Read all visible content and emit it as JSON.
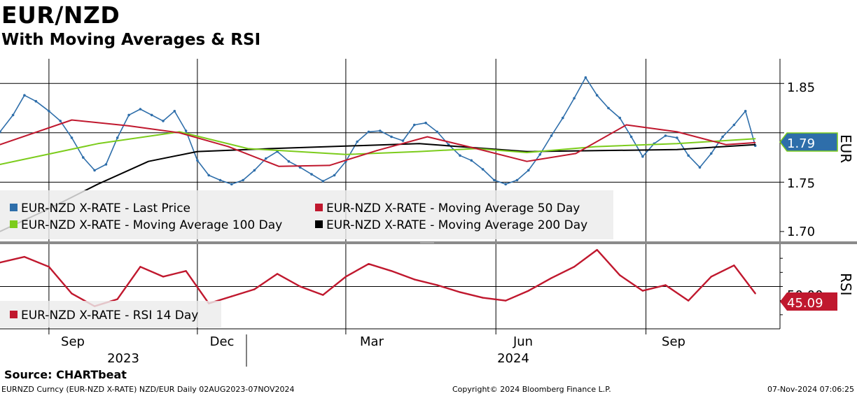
{
  "header": {
    "title": "EUR/NZD",
    "subtitle": "With Moving Averages & RSI"
  },
  "footer": {
    "source": "Source:  CHARTbeat",
    "left": "EURNZD Curncy (EUR-NZD X-RATE) NZD/EUR  Daily 02AUG2023-07NOV2024",
    "middle": "Copyright© 2024 Bloomberg Finance L.P.",
    "right": "07-Nov-2024 07:06:25"
  },
  "colors": {
    "price": "#2e6eaa",
    "ma50": "#c0182e",
    "ma100": "#7ccc1c",
    "ma200": "#000000",
    "rsi": "#c0182e",
    "grid": "#000000"
  },
  "chart_data": [
    {
      "type": "line",
      "panel": "price",
      "title": "EUR/NZD",
      "x_range": [
        "2023-08-02",
        "2024-11-07"
      ],
      "xlabel": "",
      "ylabel": "EUR",
      "ylim": [
        1.69,
        1.875
      ],
      "y_ticks": [
        "1.85",
        "1.75",
        "1.70"
      ],
      "x_ticks": [
        "Sep",
        "Dec",
        "Mar",
        "Jun",
        "Sep"
      ],
      "year_labels": [
        "2023",
        "2024"
      ],
      "last_value_label": "1.79",
      "legend": [
        {
          "label": "EUR-NZD X-RATE - Last Price",
          "color": "#2e6eaa"
        },
        {
          "label": "EUR-NZD X-RATE - Moving Average 50 Day",
          "color": "#c0182e"
        },
        {
          "label": "EUR-NZD X-RATE - Moving Average 100 Day",
          "color": "#7ccc1c"
        },
        {
          "label": "EUR-NZD X-RATE - Moving Average 200 Day",
          "color": "#000000"
        }
      ],
      "series": [
        {
          "name": "Last Price",
          "x": [
            "2023-08-02",
            "2023-08-10",
            "2023-08-17",
            "2023-08-24",
            "2023-09-01",
            "2023-09-08",
            "2023-09-15",
            "2023-09-22",
            "2023-09-29",
            "2023-10-06",
            "2023-10-13",
            "2023-10-20",
            "2023-10-27",
            "2023-11-03",
            "2023-11-10",
            "2023-11-17",
            "2023-11-24",
            "2023-12-01",
            "2023-12-08",
            "2023-12-15",
            "2023-12-22",
            "2023-12-29",
            "2024-01-05",
            "2024-01-12",
            "2024-01-19",
            "2024-01-26",
            "2024-02-02",
            "2024-02-09",
            "2024-02-16",
            "2024-02-23",
            "2024-03-01",
            "2024-03-08",
            "2024-03-15",
            "2024-03-22",
            "2024-03-29",
            "2024-04-05",
            "2024-04-12",
            "2024-04-19",
            "2024-04-26",
            "2024-05-03",
            "2024-05-10",
            "2024-05-17",
            "2024-05-24",
            "2024-05-31",
            "2024-06-07",
            "2024-06-14",
            "2024-06-21",
            "2024-06-28",
            "2024-07-05",
            "2024-07-12",
            "2024-07-19",
            "2024-07-26",
            "2024-08-02",
            "2024-08-09",
            "2024-08-16",
            "2024-08-23",
            "2024-08-30",
            "2024-09-06",
            "2024-09-13",
            "2024-09-20",
            "2024-09-27",
            "2024-10-04",
            "2024-10-11",
            "2024-10-18",
            "2024-10-25",
            "2024-11-01",
            "2024-11-07"
          ],
          "values": [
            1.801,
            1.818,
            1.838,
            1.832,
            1.822,
            1.812,
            1.795,
            1.775,
            1.762,
            1.768,
            1.795,
            1.818,
            1.824,
            1.818,
            1.812,
            1.822,
            1.802,
            1.772,
            1.757,
            1.752,
            1.748,
            1.752,
            1.762,
            1.774,
            1.781,
            1.771,
            1.765,
            1.758,
            1.751,
            1.757,
            1.771,
            1.791,
            1.801,
            1.802,
            1.796,
            1.792,
            1.808,
            1.81,
            1.801,
            1.788,
            1.777,
            1.772,
            1.763,
            1.752,
            1.748,
            1.752,
            1.762,
            1.778,
            1.797,
            1.815,
            1.835,
            1.856,
            1.838,
            1.825,
            1.815,
            1.796,
            1.776,
            1.789,
            1.797,
            1.795,
            1.777,
            1.765,
            1.779,
            1.796,
            1.808,
            1.822,
            1.787
          ]
        },
        {
          "name": "Moving Average 50 Day",
          "x": [
            "2023-08-02",
            "2023-09-15",
            "2023-10-20",
            "2023-11-20",
            "2023-12-20",
            "2024-01-20",
            "2024-02-20",
            "2024-03-20",
            "2024-04-20",
            "2024-05-20",
            "2024-06-20",
            "2024-07-20",
            "2024-08-20",
            "2024-09-20",
            "2024-10-20",
            "2024-11-07"
          ],
          "values": [
            1.788,
            1.813,
            1.807,
            1.8,
            1.786,
            1.766,
            1.767,
            1.782,
            1.796,
            1.784,
            1.771,
            1.779,
            1.808,
            1.801,
            1.788,
            1.79
          ]
        },
        {
          "name": "Moving Average 100 Day",
          "x": [
            "2023-08-02",
            "2023-10-01",
            "2023-11-20",
            "2024-01-01",
            "2024-03-01",
            "2024-04-15",
            "2024-05-20",
            "2024-06-20",
            "2024-08-01",
            "2024-09-20",
            "2024-11-07"
          ],
          "values": [
            1.768,
            1.789,
            1.801,
            1.784,
            1.778,
            1.781,
            1.784,
            1.78,
            1.786,
            1.789,
            1.794
          ]
        },
        {
          "name": "Moving Average 200 Day",
          "x": [
            "2023-08-02",
            "2023-09-01",
            "2023-10-01",
            "2023-11-01",
            "2023-12-01",
            "2024-01-15",
            "2024-04-15",
            "2024-06-20",
            "2024-09-20",
            "2024-11-07"
          ],
          "values": [
            1.7,
            1.723,
            1.748,
            1.771,
            1.781,
            1.784,
            1.789,
            1.781,
            1.783,
            1.788
          ]
        }
      ]
    },
    {
      "type": "line",
      "panel": "rsi",
      "ylabel": "RSI",
      "ylim": [
        20,
        80
      ],
      "y_ticks": [
        "50.00"
      ],
      "last_value_label": "45.09",
      "legend": [
        {
          "label": "EUR-NZD X-RATE - RSI 14 Day",
          "color": "#c0182e"
        }
      ],
      "series": [
        {
          "name": "RSI 14 Day",
          "x": [
            "2023-08-02",
            "2023-08-17",
            "2023-09-01",
            "2023-09-15",
            "2023-09-29",
            "2023-10-13",
            "2023-10-27",
            "2023-11-10",
            "2023-11-24",
            "2023-12-08",
            "2023-12-22",
            "2024-01-05",
            "2024-01-19",
            "2024-02-02",
            "2024-02-16",
            "2024-03-01",
            "2024-03-15",
            "2024-03-29",
            "2024-04-12",
            "2024-04-26",
            "2024-05-10",
            "2024-05-24",
            "2024-06-07",
            "2024-06-21",
            "2024-07-05",
            "2024-07-19",
            "2024-08-02",
            "2024-08-16",
            "2024-08-30",
            "2024-09-13",
            "2024-09-27",
            "2024-10-11",
            "2024-10-25",
            "2024-11-07"
          ],
          "values": [
            67,
            71,
            64,
            45,
            36,
            41,
            64,
            57,
            61,
            38,
            43,
            48,
            59,
            50,
            44,
            57,
            66,
            61,
            55,
            51,
            46,
            42,
            40,
            47,
            56,
            64,
            76,
            58,
            47,
            51,
            40,
            57,
            65,
            45.09
          ]
        }
      ]
    }
  ]
}
